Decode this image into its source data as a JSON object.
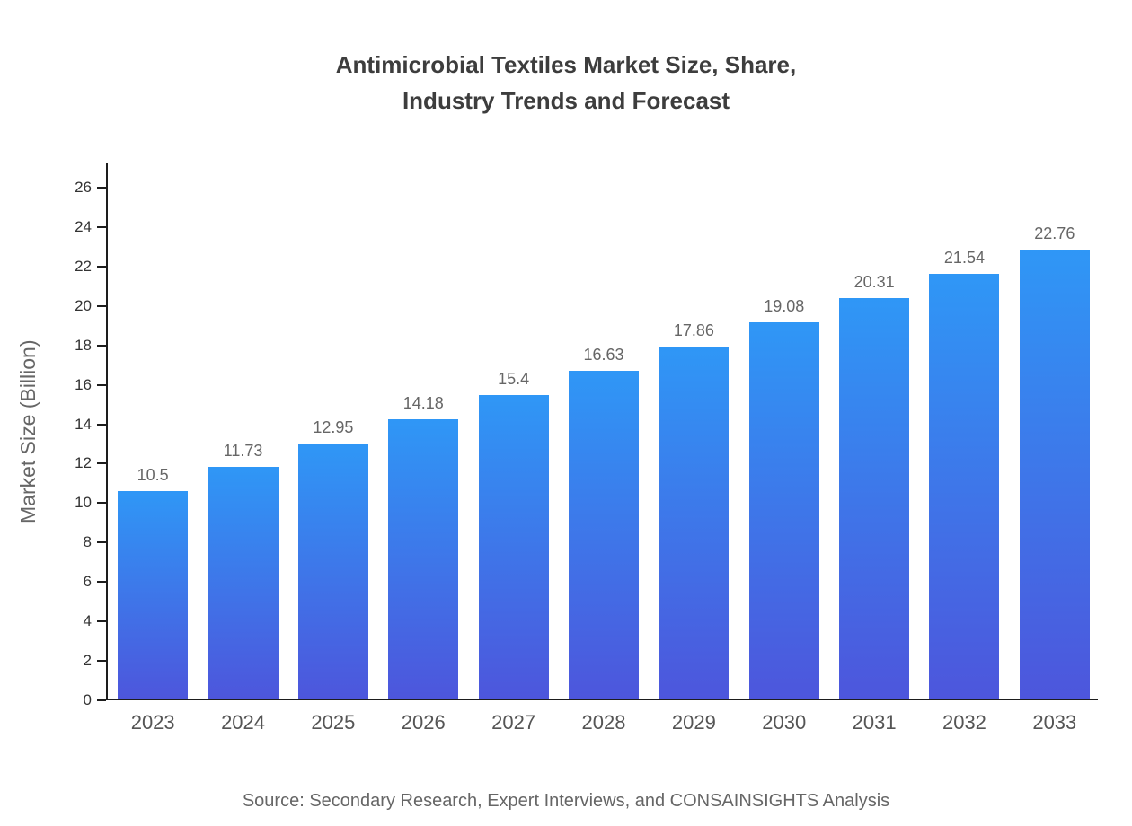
{
  "chart_data": {
    "type": "bar",
    "title": "Antimicrobial Textiles Market Size, Share, Industry Trends and Forecast",
    "title_lines": [
      "Antimicrobial Textiles Market Size, Share,",
      "Industry Trends and Forecast"
    ],
    "categories": [
      "2023",
      "2024",
      "2025",
      "2026",
      "2027",
      "2028",
      "2029",
      "2030",
      "2031",
      "2032",
      "2033"
    ],
    "values": [
      10.5,
      11.73,
      12.95,
      14.18,
      15.4,
      16.63,
      17.86,
      19.08,
      20.31,
      21.54,
      22.76
    ],
    "xlabel": "",
    "ylabel": "Market Size (Billion)",
    "ylim": [
      0,
      26
    ],
    "ytick_step": 2,
    "yticks": [
      0,
      2,
      4,
      6,
      8,
      10,
      12,
      14,
      16,
      18,
      20,
      22,
      24,
      26
    ],
    "grid": false,
    "legend": "none",
    "bar_gradient_top": "#2F97F6",
    "bar_gradient_bottom": "#4D56DC",
    "source": "Source: Secondary Research, Expert Interviews, and CONSAINSIGHTS Analysis"
  }
}
